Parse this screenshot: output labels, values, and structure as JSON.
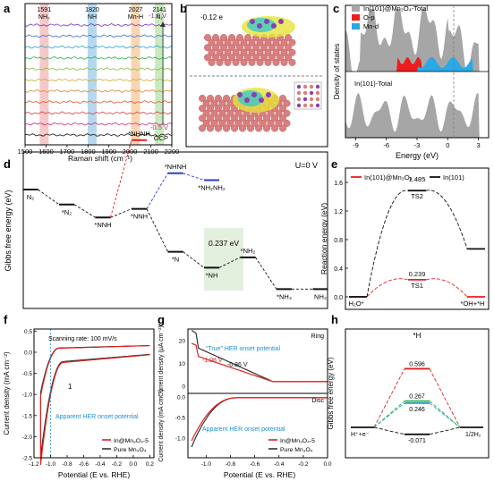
{
  "panel_letters": [
    "a",
    "b",
    "c",
    "d",
    "e",
    "f",
    "g",
    "h"
  ],
  "chart_data": [
    {
      "panel": "a",
      "type": "line",
      "xlabel": "Raman shift (cm⁻¹)",
      "xticks": [
        "1500",
        "1600",
        "1700",
        "1800",
        "1900",
        "2000",
        "2100",
        "2200"
      ],
      "xlim": [
        1500,
        2200
      ],
      "bands": [
        {
          "pos": 1591,
          "label1": "1591",
          "label2": "NH₂",
          "color": "#f4b6b6"
        },
        {
          "pos": 1820,
          "label1": "1820",
          "label2": "NH",
          "color": "#9ecbe8"
        },
        {
          "pos": 2027,
          "label1": "2027",
          "label2": "Mn-H",
          "color": "#f7c89a"
        },
        {
          "pos": 2141,
          "label1": "2141",
          "label2": "N₂",
          "color": "#b7e3a8"
        }
      ],
      "curve_colors": [
        "#7b2fbe",
        "#3a6fd8",
        "#2ca0c8",
        "#2ab04a",
        "#7fbf3a",
        "#c7b02a",
        "#e0832a",
        "#e05a2a",
        "#d8403a",
        "#c72f7a",
        "#111111"
      ],
      "labels": {
        "top": "-1.3 V",
        "bottom": "-0.5 V",
        "ocp": "OCP"
      }
    },
    {
      "panel": "b",
      "type": "diagram",
      "annotation": "-0.12 e"
    },
    {
      "panel": "c",
      "type": "area",
      "xlabel": "Energy (eV)",
      "ylabel": "Density of states",
      "xticks": [
        "-9",
        "-6",
        "-3",
        "0",
        "3"
      ],
      "legend": [
        {
          "name": "In(101)@Mn₃O₄-Total",
          "color": "#a6a6a6"
        },
        {
          "name": "O-p",
          "color": "#ee1c1c"
        },
        {
          "name": "Mn-d",
          "color": "#29a9e6"
        }
      ],
      "lower_label": "In(101)-Total"
    },
    {
      "panel": "d",
      "type": "line",
      "ylabel": "Gibbs free energy (eV)",
      "condition": "U=0 V",
      "annotation": "0.237 eV",
      "states": [
        {
          "label": "N₂",
          "x": 0,
          "y": 0.0
        },
        {
          "label": "*N₂",
          "x": 1,
          "y": -0.35
        },
        {
          "label": "*NNH",
          "x": 2,
          "y": -0.65
        },
        {
          "label": "*NNH",
          "x": 3,
          "y": -0.45
        },
        {
          "label": "*NHNH",
          "x": 3,
          "y": 1.15
        },
        {
          "label": "*NHNH",
          "x": 4,
          "y": 0.38
        },
        {
          "label": "*NH₂NH₂",
          "x": 5,
          "y": 0.22
        },
        {
          "label": "*N",
          "x": 4,
          "y": -1.45
        },
        {
          "label": "*NH",
          "x": 5,
          "y": -1.82
        },
        {
          "label": "*NH₂",
          "x": 6,
          "y": -1.58
        },
        {
          "label": "*NH₃",
          "x": 7,
          "y": -2.32
        },
        {
          "label": "NH₃",
          "x": 8,
          "y": -2.32
        }
      ]
    },
    {
      "panel": "e",
      "type": "line",
      "ylabel": "Reaction energy (eV)",
      "yticks": [
        "0.0",
        "0.4",
        "0.8",
        "1.2",
        "1.6"
      ],
      "ylim": [
        0,
        1.8
      ],
      "legend": [
        {
          "name": "In(101)@Mn₃O₄",
          "color": "#ee1c1c"
        },
        {
          "name": "In(101)",
          "color": "#111111"
        }
      ],
      "series": [
        {
          "name": "In(101)@Mn₃O₄",
          "values": [
            0,
            0.239,
            0.0
          ]
        },
        {
          "name": "In(101)",
          "values": [
            0,
            1.485,
            0.67
          ]
        }
      ],
      "value_labels": [
        "1.485",
        "TS2",
        "0.239",
        "TS1"
      ],
      "state_labels": [
        "H₂O*",
        "*OH+*H"
      ]
    },
    {
      "panel": "f",
      "type": "line",
      "xlabel": "Potential (E vs. RHE)",
      "ylabel": "Current density (mA cm⁻²)",
      "xticks": [
        "-1.2",
        "-1.0",
        "-0.8",
        "-0.6",
        "-0.4",
        "-0.2",
        "0.0",
        "0.2"
      ],
      "yticks": [
        "0.5",
        "0.0",
        "-0.5",
        "-1.0",
        "-1.5",
        "-2.0",
        "-2.5"
      ],
      "xlim": [
        -1.2,
        0.25
      ],
      "ylim": [
        -2.5,
        0.55
      ],
      "note": "Scanning rate: 100 mV/s",
      "arrow_label": "1",
      "annotation": "Apparent HER onset potential",
      "legend": [
        {
          "name": "In@Mn₃O₄-5",
          "color": "#e02020"
        },
        {
          "name": "Pure Mn₃O₄",
          "color": "#333333"
        }
      ]
    },
    {
      "panel": "g",
      "type": "line",
      "xlabel": "Potential (E vs. RHE)",
      "ylabel_top": "Current density (μA cm⁻²)",
      "ylabel_bottom": "Current density (mA cm⁻²)",
      "xticks": [
        "-1.0",
        "-0.8",
        "-0.6",
        "-0.4",
        "-0.2",
        "0.0"
      ],
      "yticks_top": [
        "20",
        "10",
        "0"
      ],
      "yticks_bottom": [
        "0.0",
        "-0.5",
        "-1.0"
      ],
      "ring": "Ring",
      "disc": "Disc",
      "annotation_true": "“True” HER onset potential",
      "value_red": "-1.08 V",
      "value_black": "-0.86 V",
      "annotation_apparent": "Apparent HER onset potential",
      "legend": [
        {
          "name": "In@Mn₃O₄-5",
          "color": "#e02020"
        },
        {
          "name": "Pure Mn₃O₄",
          "color": "#333333"
        }
      ]
    },
    {
      "panel": "h",
      "type": "line",
      "ylabel": "Gibbs free energy (eV)",
      "intermediate": "*H",
      "levels": [
        {
          "value": "0.596",
          "color": "#e02020"
        },
        {
          "value": "0.267",
          "color": "#2ab04a"
        },
        {
          "value": "0.246",
          "color": "#2aa8c8"
        },
        {
          "value": "-0.071",
          "color": "#111111"
        }
      ],
      "state_labels": [
        "H⁺+e⁻",
        "1/2H₂"
      ]
    }
  ]
}
